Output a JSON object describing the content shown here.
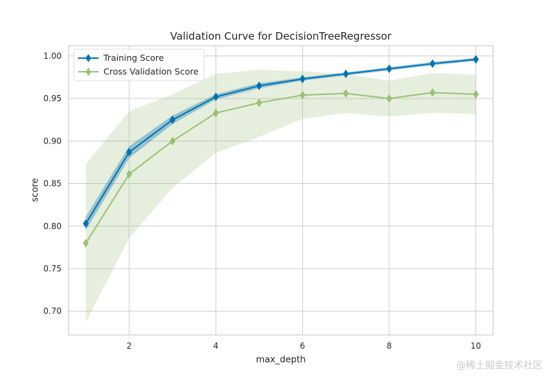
{
  "chart_data": {
    "type": "line",
    "title": "Validation Curve for DecisionTreeRegressor",
    "xlabel": "max_depth",
    "ylabel": "score",
    "xlim": [
      0.6,
      10.4
    ],
    "ylim": [
      0.672,
      1.012
    ],
    "xticks": [
      2,
      4,
      6,
      8,
      10
    ],
    "yticks": [
      0.7,
      0.75,
      0.8,
      0.85,
      0.9,
      0.95,
      1.0
    ],
    "ytick_labels": [
      "0.70",
      "0.75",
      "0.80",
      "0.85",
      "0.90",
      "0.95",
      "1.00"
    ],
    "x": [
      1,
      2,
      3,
      4,
      5,
      6,
      7,
      8,
      9,
      10
    ],
    "series": [
      {
        "name": "Training Score",
        "color": "#0072B2",
        "values": [
          0.803,
          0.887,
          0.925,
          0.952,
          0.965,
          0.973,
          0.979,
          0.985,
          0.991,
          0.996
        ],
        "band_low": [
          0.795,
          0.88,
          0.92,
          0.949,
          0.962,
          0.971,
          0.977,
          0.983,
          0.989,
          0.994
        ],
        "band_high": [
          0.811,
          0.894,
          0.93,
          0.955,
          0.968,
          0.975,
          0.981,
          0.987,
          0.993,
          0.998
        ]
      },
      {
        "name": "Cross Validation Score",
        "color": "#9BC076",
        "values": [
          0.78,
          0.861,
          0.9,
          0.933,
          0.945,
          0.954,
          0.956,
          0.95,
          0.957,
          0.955
        ],
        "band_low": [
          0.687,
          0.786,
          0.845,
          0.886,
          0.905,
          0.926,
          0.933,
          0.929,
          0.933,
          0.932
        ],
        "band_high": [
          0.873,
          0.935,
          0.955,
          0.979,
          0.984,
          0.982,
          0.979,
          0.971,
          0.98,
          0.978
        ]
      }
    ],
    "legend_position": "top-left",
    "grid": true
  },
  "watermark": "@稀土掘金技术社区"
}
